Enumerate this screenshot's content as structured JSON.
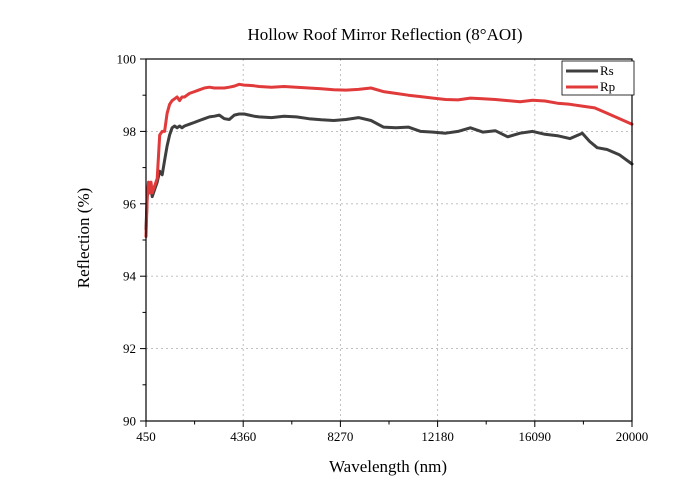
{
  "chart_data": {
    "type": "line",
    "title": "Hollow Roof Mirror Reflection (8°AOI)",
    "xlabel": "Wavelength (nm)",
    "ylabel": "Reflection (%)",
    "xlim": [
      450,
      20000
    ],
    "ylim": [
      90,
      100
    ],
    "xticks": [
      450,
      4360,
      8270,
      12180,
      16090,
      20000
    ],
    "yticks": [
      90,
      92,
      94,
      96,
      98,
      100
    ],
    "grid": true,
    "legend_position": "top-right",
    "series": [
      {
        "name": "Rs",
        "color": "#3f3f3f",
        "x": [
          450,
          500,
          550,
          600,
          650,
          700,
          800,
          900,
          1000,
          1100,
          1200,
          1300,
          1400,
          1500,
          1600,
          1700,
          1800,
          1900,
          2000,
          2200,
          2400,
          2600,
          2800,
          3000,
          3200,
          3400,
          3600,
          3800,
          4000,
          4200,
          4400,
          4600,
          4800,
          5000,
          5500,
          6000,
          6500,
          7000,
          7500,
          8000,
          8500,
          9000,
          9500,
          10000,
          10500,
          11000,
          11500,
          12000,
          12500,
          13000,
          13500,
          14000,
          14500,
          15000,
          15500,
          16000,
          16500,
          17000,
          17500,
          18000,
          18300,
          18600,
          19000,
          19500,
          20000
        ],
        "y": [
          95.3,
          96.2,
          96.5,
          96.3,
          96.5,
          96.2,
          96.4,
          96.6,
          96.9,
          96.8,
          97.2,
          97.6,
          97.9,
          98.1,
          98.15,
          98.1,
          98.15,
          98.1,
          98.15,
          98.2,
          98.25,
          98.3,
          98.35,
          98.4,
          98.42,
          98.45,
          98.35,
          98.33,
          98.45,
          98.48,
          98.48,
          98.45,
          98.42,
          98.4,
          98.38,
          98.42,
          98.4,
          98.35,
          98.32,
          98.3,
          98.33,
          98.38,
          98.3,
          98.12,
          98.1,
          98.12,
          98.0,
          97.98,
          97.95,
          98.0,
          98.1,
          97.98,
          98.02,
          97.85,
          97.95,
          98.0,
          97.92,
          97.88,
          97.8,
          97.95,
          97.72,
          97.55,
          97.5,
          97.35,
          97.1
        ]
      },
      {
        "name": "Rp",
        "color": "#e03a3a",
        "x": [
          450,
          500,
          550,
          600,
          650,
          700,
          800,
          900,
          1000,
          1100,
          1200,
          1300,
          1400,
          1500,
          1600,
          1700,
          1800,
          1900,
          2000,
          2200,
          2400,
          2600,
          2800,
          3000,
          3200,
          3400,
          3600,
          3800,
          4000,
          4200,
          4400,
          4600,
          4800,
          5000,
          5500,
          6000,
          6500,
          7000,
          7500,
          8000,
          8500,
          9000,
          9500,
          10000,
          10500,
          11000,
          11500,
          12000,
          12500,
          13000,
          13500,
          14000,
          14500,
          15000,
          15500,
          16000,
          16500,
          17000,
          17500,
          18000,
          18500,
          19000,
          19500,
          20000
        ],
        "y": [
          95.1,
          96.2,
          96.6,
          96.3,
          96.6,
          96.3,
          96.5,
          96.7,
          97.9,
          98.0,
          98.0,
          98.5,
          98.75,
          98.85,
          98.9,
          98.95,
          98.85,
          98.95,
          98.95,
          99.05,
          99.1,
          99.15,
          99.2,
          99.22,
          99.2,
          99.2,
          99.2,
          99.22,
          99.25,
          99.3,
          99.28,
          99.27,
          99.26,
          99.24,
          99.22,
          99.24,
          99.22,
          99.2,
          99.18,
          99.15,
          99.14,
          99.16,
          99.2,
          99.1,
          99.05,
          99.0,
          98.96,
          98.92,
          98.88,
          98.87,
          98.92,
          98.9,
          98.88,
          98.85,
          98.82,
          98.86,
          98.84,
          98.78,
          98.75,
          98.7,
          98.65,
          98.5,
          98.35,
          98.2
        ]
      }
    ]
  }
}
